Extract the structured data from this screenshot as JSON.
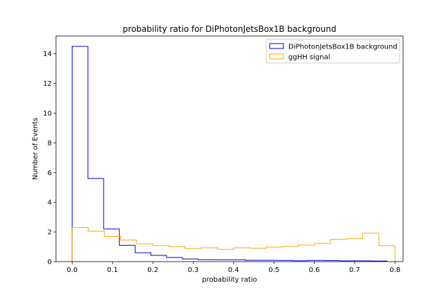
{
  "chart_data": {
    "type": "histogram-step",
    "title": "probability ratio for DiPhotonJetsBox1B background",
    "xlabel": "probability ratio",
    "ylabel": "Number of Events",
    "xlim": [
      -0.04,
      0.82
    ],
    "ylim": [
      0,
      15.2
    ],
    "xticks": [
      0.0,
      0.1,
      0.2,
      0.3,
      0.4,
      0.5,
      0.6,
      0.7,
      0.8
    ],
    "xtick_labels": [
      "0.0",
      "0.1",
      "0.2",
      "0.3",
      "0.4",
      "0.5",
      "0.6",
      "0.7",
      "0.8"
    ],
    "yticks": [
      0,
      2,
      4,
      6,
      8,
      10,
      12,
      14
    ],
    "ytick_labels": [
      "0",
      "2",
      "4",
      "6",
      "8",
      "10",
      "12",
      "14"
    ],
    "grid": false,
    "legend_position": "top-right",
    "series": [
      {
        "name": "DiPhotonJetsBox1B background",
        "color": "#0000cd",
        "bin_edges": [
          0.0,
          0.039,
          0.078,
          0.117,
          0.156,
          0.195,
          0.234,
          0.273,
          0.312,
          0.351,
          0.39,
          0.429,
          0.468,
          0.507,
          0.546,
          0.585,
          0.624,
          0.663,
          0.702,
          0.741,
          0.78
        ],
        "counts": [
          14.5,
          5.6,
          2.2,
          1.1,
          0.6,
          0.42,
          0.28,
          0.18,
          0.13,
          0.12,
          0.12,
          0.09,
          0.09,
          0.08,
          0.06,
          0.08,
          0.07,
          0.05,
          0.05,
          0.04
        ]
      },
      {
        "name": "ggHH signal",
        "color": "#ffa500",
        "bin_edges": [
          0.0,
          0.04,
          0.08,
          0.12,
          0.16,
          0.2,
          0.24,
          0.28,
          0.32,
          0.36,
          0.4,
          0.44,
          0.48,
          0.52,
          0.56,
          0.6,
          0.64,
          0.68,
          0.72,
          0.76,
          0.8
        ],
        "counts": [
          2.3,
          2.05,
          1.7,
          1.45,
          1.2,
          1.08,
          1.0,
          0.88,
          0.93,
          0.83,
          0.93,
          0.9,
          0.98,
          1.02,
          1.12,
          1.22,
          1.5,
          1.55,
          1.92,
          1.08
        ]
      }
    ]
  }
}
